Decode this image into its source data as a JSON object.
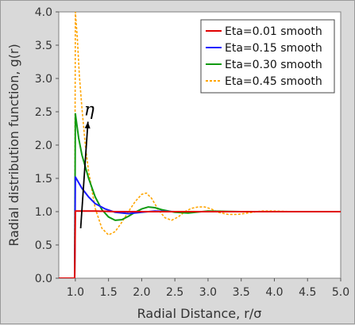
{
  "chart_data": {
    "type": "line",
    "xlabel": "Radial Distance,  r/σ",
    "ylabel": "Radial distribution function,  g(r)",
    "xlim": [
      0.75,
      5.0
    ],
    "ylim": [
      0.0,
      4.0
    ],
    "x_ticks": [
      "1.0",
      "1.5",
      "2.0",
      "2.5",
      "3.0",
      "3.5",
      "4.0",
      "4.5",
      "5.0"
    ],
    "y_ticks": [
      "0.0",
      "0.5",
      "1.0",
      "1.5",
      "2.0",
      "2.5",
      "3.0",
      "3.5",
      "4.0"
    ],
    "grid": false,
    "legend_position": "top-right",
    "annotation": {
      "text": "η",
      "arrow_from": [
        1.08,
        0.75
      ],
      "arrow_to": [
        1.19,
        2.35
      ]
    },
    "series": [
      {
        "name": "Eta=0.01 smooth",
        "color": "#e00000",
        "dashed": false,
        "x": [
          0.75,
          0.99,
          1.0,
          1.1,
          1.3,
          1.6,
          2.0,
          2.5,
          3.0,
          3.5,
          4.0,
          4.5,
          5.0
        ],
        "y": [
          0.0,
          0.0,
          1.01,
          1.01,
          1.01,
          1.0,
          1.0,
          1.0,
          1.0,
          1.0,
          1.0,
          1.0,
          1.0
        ]
      },
      {
        "name": "Eta=0.15 smooth",
        "color": "#1a1aff",
        "dashed": false,
        "x": [
          0.75,
          0.99,
          1.0,
          1.1,
          1.2,
          1.3,
          1.45,
          1.6,
          1.8,
          2.0,
          2.2,
          2.5,
          3.0,
          3.5,
          4.0,
          4.5,
          5.0
        ],
        "y": [
          0.0,
          0.0,
          1.52,
          1.35,
          1.22,
          1.12,
          1.04,
          0.99,
          0.97,
          0.99,
          1.01,
          1.0,
          1.0,
          1.0,
          1.0,
          1.0,
          1.0
        ]
      },
      {
        "name": "Eta=0.30 smooth",
        "color": "#109a10",
        "dashed": false,
        "x": [
          0.75,
          0.99,
          1.0,
          1.05,
          1.1,
          1.2,
          1.3,
          1.4,
          1.5,
          1.6,
          1.7,
          1.8,
          1.9,
          2.0,
          2.1,
          2.2,
          2.3,
          2.5,
          2.7,
          3.0,
          3.5,
          4.0,
          5.0
        ],
        "y": [
          0.0,
          0.0,
          2.47,
          2.1,
          1.85,
          1.5,
          1.22,
          1.03,
          0.92,
          0.87,
          0.88,
          0.93,
          0.99,
          1.04,
          1.07,
          1.06,
          1.03,
          0.99,
          0.98,
          1.01,
          1.0,
          1.0,
          1.0
        ]
      },
      {
        "name": "Eta=0.45 smooth",
        "color": "#ffa500",
        "dashed": true,
        "x": [
          0.75,
          0.99,
          1.0,
          1.03,
          1.06,
          1.1,
          1.15,
          1.2,
          1.3,
          1.4,
          1.5,
          1.6,
          1.7,
          1.8,
          1.9,
          2.0,
          2.07,
          2.15,
          2.25,
          2.35,
          2.45,
          2.55,
          2.65,
          2.75,
          2.85,
          2.95,
          3.05,
          3.15,
          3.3,
          3.45,
          3.6,
          3.8,
          4.0,
          4.3,
          4.6,
          5.0
        ],
        "y": [
          0.0,
          0.0,
          4.0,
          3.6,
          3.05,
          2.55,
          2.0,
          1.6,
          1.05,
          0.75,
          0.65,
          0.7,
          0.84,
          1.0,
          1.15,
          1.26,
          1.28,
          1.2,
          1.03,
          0.91,
          0.87,
          0.92,
          1.0,
          1.05,
          1.07,
          1.07,
          1.04,
          0.99,
          0.96,
          0.96,
          0.98,
          1.01,
          1.01,
          1.0,
          1.0,
          1.0
        ]
      }
    ]
  }
}
